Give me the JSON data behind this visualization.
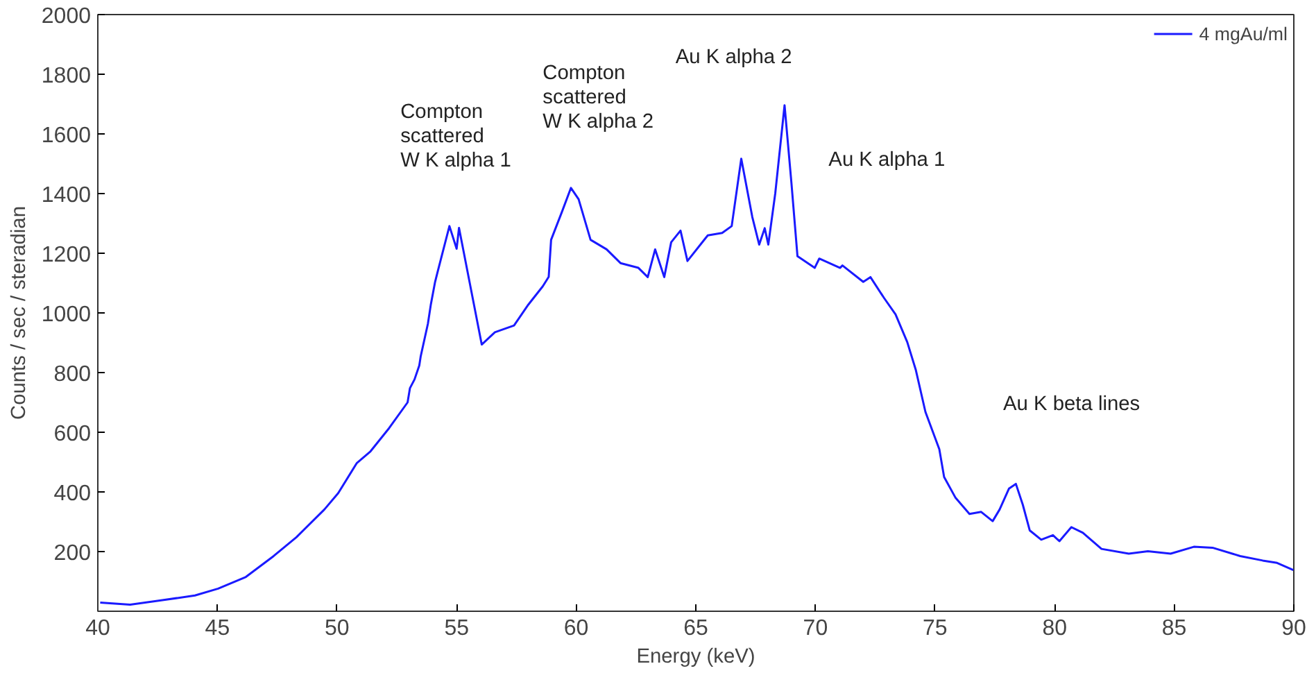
{
  "chart_data": {
    "type": "line",
    "xlabel": "Energy (keV)",
    "ylabel": "Counts / sec / steradian",
    "xlim": [
      40,
      90
    ],
    "ylim": [
      0,
      2000
    ],
    "xticks": [
      40,
      45,
      50,
      55,
      60,
      65,
      70,
      75,
      80,
      85,
      90
    ],
    "yticks": [
      200,
      400,
      600,
      800,
      1000,
      1200,
      1400,
      1600,
      1800,
      2000
    ],
    "grid": false,
    "legend": "top right",
    "marker": "none",
    "line_style": "solid",
    "series": [
      {
        "name": "4 mgAu/ml",
        "color": "#1a1aff",
        "x": [
          40.1,
          41.35,
          42.7,
          44.06,
          45.03,
          46.19,
          47.35,
          48.3,
          49.47,
          50.05,
          50.83,
          51.4,
          52.18,
          52.95,
          53.05,
          53.24,
          53.44,
          53.5,
          53.8,
          53.92,
          54.1,
          54.2,
          54.4,
          54.7,
          55.0,
          55.1,
          56.05,
          56.6,
          57.4,
          58.0,
          58.6,
          58.85,
          58.95,
          59.4,
          59.78,
          60.1,
          60.6,
          61.27,
          61.85,
          62.6,
          62.99,
          63.3,
          63.68,
          63.97,
          64.36,
          64.65,
          65.5,
          66.1,
          66.5,
          66.9,
          67.36,
          67.65,
          67.88,
          68.03,
          68.32,
          68.71,
          69.0,
          69.25,
          69.97,
          70.16,
          71.03,
          71.13,
          72.0,
          72.3,
          72.87,
          73.35,
          73.84,
          74.2,
          74.6,
          75.18,
          75.38,
          75.86,
          76.44,
          76.93,
          77.41,
          77.7,
          78.09,
          78.38,
          78.67,
          78.96,
          79.44,
          79.93,
          80.2,
          80.7,
          81.18,
          81.96,
          83.1,
          83.9,
          84.85,
          85.82,
          86.6,
          87.76,
          88.7,
          89.3,
          89.98
        ],
        "values": [
          29,
          22,
          37,
          53,
          76,
          115,
          185,
          248,
          341,
          396,
          497,
          536,
          614,
          700,
          748,
          777,
          824,
          855,
          964,
          1027,
          1104,
          1136,
          1198,
          1291,
          1215,
          1285,
          894,
          935,
          958,
          1028,
          1089,
          1121,
          1245,
          1338,
          1419,
          1381,
          1245,
          1213,
          1167,
          1151,
          1120,
          1213,
          1120,
          1237,
          1276,
          1174,
          1260,
          1268,
          1291,
          1517,
          1322,
          1229,
          1284,
          1229,
          1400,
          1696,
          1433,
          1190,
          1151,
          1182,
          1151,
          1159,
          1104,
          1120,
          1050,
          995,
          902,
          808,
          668,
          543,
          450,
          380,
          326,
          333,
          302,
          341,
          411,
          427,
          357,
          271,
          240,
          255,
          235,
          282,
          263,
          209,
          193,
          201,
          193,
          216,
          213,
          185,
          170,
          162,
          138
        ]
      }
    ],
    "annotations": [
      "Compton\nscattered\nW K alpha 1",
      "Compton\nscattered\nW K alpha 2",
      "Au K alpha 2",
      "Au K alpha 1",
      "Au K beta lines"
    ]
  }
}
